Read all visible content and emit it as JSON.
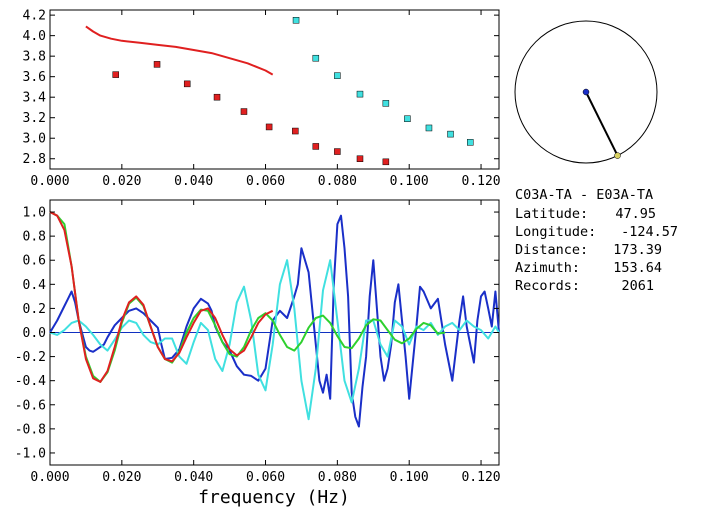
{
  "info": {
    "title": "C03A-TA - E03A-TA",
    "rows": [
      {
        "label": "Latitude:",
        "value": "47.95"
      },
      {
        "label": "Longitude:",
        "value": "-124.57"
      },
      {
        "label": "Distance:",
        "value": "173.39"
      },
      {
        "label": "Azimuth:",
        "value": "153.64"
      },
      {
        "label": "Records:",
        "value": "2061"
      }
    ]
  },
  "compass": {
    "azimuth_deg": 153.64
  },
  "chart_data": [
    {
      "type": "scatter",
      "xlabel": "",
      "ylabel": "",
      "xlim": [
        0.0,
        0.125
      ],
      "ylim": [
        2.7,
        4.25
      ],
      "x_ticks": [
        "0.000",
        "0.020",
        "0.040",
        "0.060",
        "0.080",
        "0.100",
        "0.120"
      ],
      "y_ticks": [
        "2.8",
        "3.0",
        "3.2",
        "3.4",
        "3.6",
        "3.8",
        "4.0",
        "4.2"
      ],
      "x_tick_values": [
        0,
        0.02,
        0.04,
        0.06,
        0.08,
        0.1,
        0.12
      ],
      "y_tick_values": [
        2.8,
        3.0,
        3.2,
        3.4,
        3.6,
        3.8,
        4.0,
        4.2
      ],
      "series": [
        {
          "color": "#e02020",
          "kind": "line",
          "x": [
            0.01,
            0.012,
            0.014,
            0.017,
            0.02,
            0.025,
            0.03,
            0.035,
            0.04,
            0.045,
            0.05,
            0.055,
            0.06,
            0.062
          ],
          "y": [
            4.09,
            4.04,
            4.0,
            3.97,
            3.95,
            3.93,
            3.91,
            3.89,
            3.86,
            3.83,
            3.78,
            3.73,
            3.66,
            3.62
          ]
        },
        {
          "color": "#e02020",
          "kind": "markers",
          "x": [
            0.0183,
            0.0298,
            0.0382,
            0.0465,
            0.054,
            0.061,
            0.0683,
            0.074,
            0.08,
            0.0863,
            0.0935
          ],
          "y": [
            3.62,
            3.72,
            3.53,
            3.4,
            3.26,
            3.11,
            3.07,
            2.92,
            2.87,
            2.8,
            2.77
          ]
        },
        {
          "color": "#40e0e0",
          "kind": "markers",
          "x": [
            0.0685,
            0.074,
            0.08,
            0.0863,
            0.0935,
            0.0995,
            0.1055,
            0.1115,
            0.117
          ],
          "y": [
            4.15,
            3.78,
            3.61,
            3.43,
            3.34,
            3.19,
            3.1,
            3.04,
            2.96
          ]
        }
      ]
    },
    {
      "type": "line",
      "xlabel": "frequency (Hz)",
      "ylabel": "",
      "xlim": [
        0.0,
        0.125
      ],
      "ylim": [
        -1.1,
        1.1
      ],
      "x_ticks": [
        "0.000",
        "0.020",
        "0.040",
        "0.060",
        "0.080",
        "0.100",
        "0.120"
      ],
      "y_ticks": [
        "1.0",
        "0.8",
        "0.6",
        "0.4",
        "0.2",
        "0.0",
        "-0.2",
        "-0.4",
        "-0.6",
        "-0.8",
        "-1.0"
      ],
      "x_tick_values": [
        0,
        0.02,
        0.04,
        0.06,
        0.08,
        0.1,
        0.12
      ],
      "y_tick_values": [
        1.0,
        0.8,
        0.6,
        0.4,
        0.2,
        0.0,
        -0.2,
        -0.4,
        -0.6,
        -0.8,
        -1.0
      ],
      "zero_line_color": "#1030c0",
      "series": [
        {
          "color": "#1a2fc8",
          "x": [
            0,
            0.002,
            0.004,
            0.005,
            0.006,
            0.007,
            0.008,
            0.01,
            0.011,
            0.012,
            0.013,
            0.015,
            0.016,
            0.018,
            0.02,
            0.022,
            0.024,
            0.026,
            0.028,
            0.03,
            0.031,
            0.032,
            0.034,
            0.036,
            0.038,
            0.04,
            0.042,
            0.044,
            0.045,
            0.046,
            0.048,
            0.05,
            0.052,
            0.054,
            0.056,
            0.058,
            0.06,
            0.062,
            0.064,
            0.066,
            0.068,
            0.069,
            0.07,
            0.072,
            0.074,
            0.075,
            0.076,
            0.077,
            0.078,
            0.079,
            0.08,
            0.081,
            0.082,
            0.083,
            0.084,
            0.085,
            0.086,
            0.087,
            0.088,
            0.089,
            0.09,
            0.091,
            0.092,
            0.093,
            0.094,
            0.095,
            0.096,
            0.097,
            0.098,
            0.099,
            0.1,
            0.101,
            0.102,
            0.103,
            0.104,
            0.106,
            0.108,
            0.11,
            0.112,
            0.114,
            0.115,
            0.116,
            0.118,
            0.119,
            0.12,
            0.121,
            0.122,
            0.123,
            0.124,
            0.125
          ],
          "y": [
            0.0,
            0.1,
            0.22,
            0.28,
            0.34,
            0.25,
            0.1,
            -0.12,
            -0.15,
            -0.16,
            -0.14,
            -0.1,
            -0.04,
            0.06,
            0.12,
            0.18,
            0.2,
            0.16,
            0.1,
            0.04,
            -0.1,
            -0.22,
            -0.21,
            -0.14,
            0.05,
            0.2,
            0.28,
            0.24,
            0.18,
            0.05,
            -0.08,
            -0.15,
            -0.28,
            -0.35,
            -0.36,
            -0.4,
            -0.3,
            0.1,
            0.18,
            0.12,
            0.3,
            0.4,
            0.7,
            0.5,
            -0.1,
            -0.4,
            -0.5,
            -0.35,
            -0.55,
            0.4,
            0.9,
            0.97,
            0.7,
            0.3,
            -0.5,
            -0.7,
            -0.78,
            -0.45,
            -0.2,
            0.3,
            0.6,
            0.2,
            -0.2,
            -0.4,
            -0.3,
            -0.1,
            0.25,
            0.4,
            0.1,
            -0.2,
            -0.55,
            -0.25,
            0.05,
            0.38,
            0.34,
            0.2,
            0.28,
            -0.1,
            -0.4,
            0.1,
            0.3,
            0.05,
            -0.25,
            0.1,
            0.3,
            0.34,
            0.2,
            0.05,
            0.34,
            0.0
          ]
        },
        {
          "color": "#40e0e0",
          "x": [
            0,
            0.002,
            0.004,
            0.006,
            0.008,
            0.01,
            0.012,
            0.014,
            0.016,
            0.018,
            0.02,
            0.022,
            0.024,
            0.026,
            0.028,
            0.03,
            0.032,
            0.034,
            0.036,
            0.038,
            0.04,
            0.042,
            0.044,
            0.046,
            0.048,
            0.05,
            0.052,
            0.054,
            0.056,
            0.058,
            0.06,
            0.062,
            0.064,
            0.066,
            0.068,
            0.07,
            0.072,
            0.074,
            0.076,
            0.078,
            0.08,
            0.082,
            0.084,
            0.086,
            0.088,
            0.09,
            0.092,
            0.094,
            0.096,
            0.098,
            0.1,
            0.102,
            0.104,
            0.106,
            0.108,
            0.11,
            0.112,
            0.114,
            0.116,
            0.118,
            0.12,
            0.122,
            0.124,
            0.125
          ],
          "y": [
            0.0,
            -0.02,
            0.02,
            0.08,
            0.1,
            0.05,
            -0.02,
            -0.1,
            -0.15,
            -0.06,
            0.04,
            0.1,
            0.08,
            -0.02,
            -0.08,
            -0.1,
            -0.05,
            -0.05,
            -0.2,
            -0.26,
            -0.08,
            0.08,
            0.02,
            -0.22,
            -0.32,
            -0.1,
            0.25,
            0.38,
            0.1,
            -0.35,
            -0.48,
            -0.1,
            0.4,
            0.6,
            0.2,
            -0.4,
            -0.72,
            -0.3,
            0.35,
            0.6,
            0.1,
            -0.4,
            -0.58,
            -0.3,
            0.1,
            0.1,
            -0.1,
            -0.2,
            0.1,
            0.05,
            -0.1,
            0.05,
            0.02,
            0.08,
            -0.02,
            0.05,
            0.08,
            0.02,
            0.1,
            0.05,
            0.02,
            -0.05,
            0.05,
            0.0
          ]
        },
        {
          "color": "#2ed02e",
          "x": [
            0,
            0.002,
            0.004,
            0.006,
            0.008,
            0.01,
            0.012,
            0.014,
            0.016,
            0.018,
            0.02,
            0.022,
            0.024,
            0.026,
            0.028,
            0.03,
            0.032,
            0.034,
            0.036,
            0.038,
            0.04,
            0.042,
            0.044,
            0.046,
            0.048,
            0.05,
            0.052,
            0.054,
            0.056,
            0.058,
            0.06,
            0.062,
            0.064,
            0.066,
            0.068,
            0.07,
            0.072,
            0.074,
            0.076,
            0.078,
            0.08,
            0.082,
            0.084,
            0.086,
            0.088,
            0.09,
            0.092,
            0.094,
            0.096,
            0.098,
            0.1,
            0.102,
            0.104,
            0.106,
            0.108,
            0.11
          ],
          "y": [
            1.0,
            0.97,
            0.9,
            0.55,
            0.1,
            -0.2,
            -0.36,
            -0.41,
            -0.33,
            -0.15,
            0.08,
            0.24,
            0.29,
            0.22,
            0.05,
            -0.12,
            -0.22,
            -0.25,
            -0.16,
            0.0,
            0.12,
            0.19,
            0.18,
            0.06,
            -0.08,
            -0.18,
            -0.2,
            -0.12,
            0.02,
            0.12,
            0.16,
            0.1,
            -0.02,
            -0.12,
            -0.15,
            -0.08,
            0.04,
            0.12,
            0.14,
            0.08,
            -0.03,
            -0.12,
            -0.13,
            -0.05,
            0.06,
            0.11,
            0.1,
            0.02,
            -0.06,
            -0.09,
            -0.05,
            0.03,
            0.08,
            0.06,
            -0.01,
            0.0
          ]
        },
        {
          "color": "#e02020",
          "x": [
            0,
            0.002,
            0.004,
            0.006,
            0.008,
            0.01,
            0.012,
            0.014,
            0.016,
            0.018,
            0.02,
            0.022,
            0.024,
            0.026,
            0.028,
            0.03,
            0.032,
            0.034,
            0.036,
            0.038,
            0.04,
            0.042,
            0.044,
            0.046,
            0.048,
            0.05,
            0.052,
            0.054,
            0.056,
            0.058,
            0.06,
            0.062
          ],
          "y": [
            1.0,
            0.97,
            0.85,
            0.55,
            0.1,
            -0.22,
            -0.38,
            -0.41,
            -0.32,
            -0.12,
            0.1,
            0.25,
            0.3,
            0.23,
            0.05,
            -0.12,
            -0.22,
            -0.24,
            -0.17,
            -0.04,
            0.08,
            0.18,
            0.2,
            0.12,
            -0.02,
            -0.14,
            -0.19,
            -0.15,
            -0.04,
            0.08,
            0.15,
            0.18
          ]
        }
      ]
    }
  ]
}
